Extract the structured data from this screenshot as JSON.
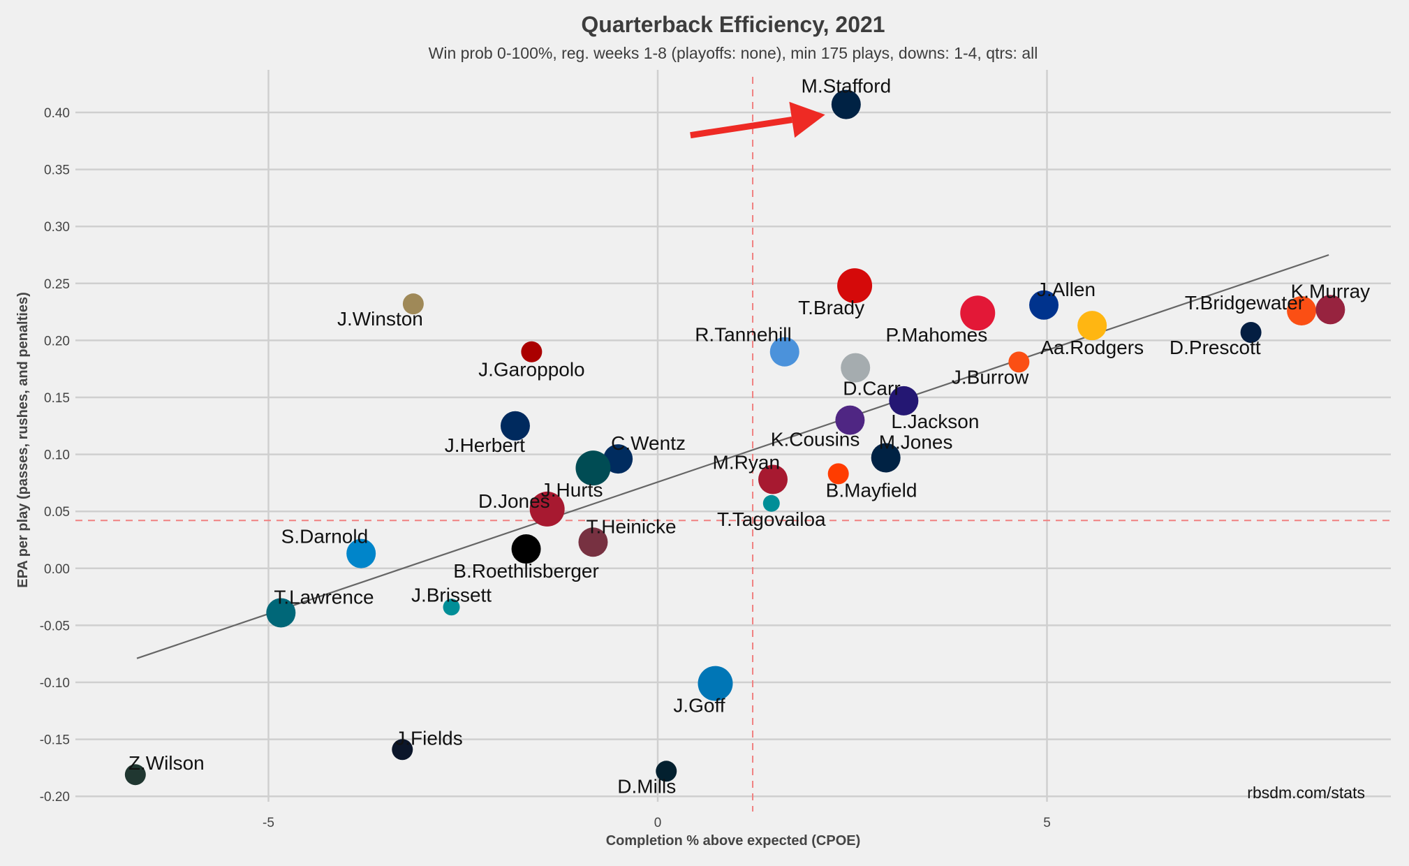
{
  "chart_data": {
    "type": "scatter",
    "title": "Quarterback Efficiency, 2021",
    "subtitle": "Win prob 0-100%, reg. weeks 1-8 (playoffs: none), min 175 plays, downs: 1-4, qtrs: all",
    "xlabel": "Completion % above expected (CPOE)",
    "ylabel": "EPA per play (passes, rushes, and penalties)",
    "caption": "rbsdm.com/stats",
    "xlim": [
      -7.5,
      9.3
    ],
    "ylim": [
      -0.21,
      0.44
    ],
    "xticks": [
      -5,
      0,
      5
    ],
    "xtick_labels": [
      "-5",
      "0",
      "5"
    ],
    "yticks": [
      0.4,
      0.35,
      0.3,
      0.25,
      0.2,
      0.15,
      0.1,
      0.05,
      0.0,
      -0.05,
      -0.1,
      -0.15,
      -0.2
    ],
    "ytick_labels": [
      "0.40",
      "0.35",
      "0.30",
      "0.25",
      "0.20",
      "0.15",
      "0.10",
      "0.05",
      "0.00",
      "-0.05",
      "-0.10",
      "-0.15",
      "-0.20"
    ],
    "grid": true,
    "reference_lines": {
      "vertical_x": 1.22,
      "horizontal_y": 0.042,
      "color": "#f08080"
    },
    "trend_line": {
      "x": [
        -6.69,
        8.62
      ],
      "y": [
        -0.079,
        0.275
      ],
      "color": "#666666"
    },
    "annotation_arrow": {
      "from": [
        0.42,
        0.38
      ],
      "to": [
        2.15,
        0.398
      ],
      "color": "#ee2a24",
      "points_to": "M.Stafford"
    },
    "points": [
      {
        "name": "M.Stafford",
        "x": 2.42,
        "y": 0.407,
        "color": "#002244",
        "size": "medium",
        "label_pos": "above"
      },
      {
        "name": "T.Brady",
        "x": 2.53,
        "y": 0.248,
        "color": "#d50a0a",
        "size": "large",
        "label_pos": "below-left"
      },
      {
        "name": "J.Winston",
        "x": -3.14,
        "y": 0.232,
        "color": "#9f8958",
        "size": "small",
        "label_pos": "below-left"
      },
      {
        "name": "J.Garoppolo",
        "x": -1.62,
        "y": 0.19,
        "color": "#aa0000",
        "size": "small",
        "label_pos": "below"
      },
      {
        "name": "R.Tannehill",
        "x": 1.63,
        "y": 0.19,
        "color": "#4b92db",
        "size": "medium",
        "label_pos": "above-left"
      },
      {
        "name": "P.Mahomes",
        "x": 4.11,
        "y": 0.224,
        "color": "#e31837",
        "size": "large",
        "label_pos": "below-left"
      },
      {
        "name": "J.Allen",
        "x": 4.96,
        "y": 0.231,
        "color": "#00338d",
        "size": "medium",
        "label_pos": "above-right"
      },
      {
        "name": "Aa.Rodgers",
        "x": 5.58,
        "y": 0.213,
        "color": "#ffb612",
        "size": "medium",
        "label_pos": "below"
      },
      {
        "name": "T.Bridgewater",
        "x": 8.27,
        "y": 0.226,
        "color": "#fb4f14",
        "size": "medium",
        "label_pos": "left"
      },
      {
        "name": "K.Murray",
        "x": 8.64,
        "y": 0.227,
        "color": "#97233f",
        "size": "medium",
        "label_pos": "above"
      },
      {
        "name": "D.Prescott",
        "x": 7.62,
        "y": 0.207,
        "color": "#041e42",
        "size": "small",
        "label_pos": "below-left"
      },
      {
        "name": "D.Carr",
        "x": 2.54,
        "y": 0.176,
        "color": "#a5acaf",
        "size": "medium",
        "label_pos": "below-right"
      },
      {
        "name": "J.Burrow",
        "x": 4.64,
        "y": 0.181,
        "color": "#fb4f14",
        "size": "small",
        "label_pos": "below-left"
      },
      {
        "name": "L.Jackson",
        "x": 3.16,
        "y": 0.147,
        "color": "#241773",
        "size": "medium",
        "label_pos": "below-right"
      },
      {
        "name": "K.Cousins",
        "x": 2.47,
        "y": 0.13,
        "color": "#4f2683",
        "size": "medium",
        "label_pos": "below-left"
      },
      {
        "name": "M.Jones",
        "x": 2.93,
        "y": 0.097,
        "color": "#002244",
        "size": "medium",
        "label_pos": "above-right"
      },
      {
        "name": "J.Herbert",
        "x": -1.83,
        "y": 0.125,
        "color": "#002a5e",
        "size": "medium",
        "label_pos": "below-left"
      },
      {
        "name": "C.Wentz",
        "x": -0.51,
        "y": 0.096,
        "color": "#002c5f",
        "size": "medium",
        "label_pos": "above-right"
      },
      {
        "name": "J.Hurts",
        "x": -0.83,
        "y": 0.088,
        "color": "#004c54",
        "size": "large",
        "label_pos": "below-left"
      },
      {
        "name": "D.Jones",
        "x": -1.42,
        "y": 0.052,
        "color": "#a71930",
        "size": "large",
        "label_pos": "left"
      },
      {
        "name": "M.Ryan",
        "x": 1.48,
        "y": 0.078,
        "color": "#a71930",
        "size": "medium",
        "label_pos": "above-left"
      },
      {
        "name": "B.Mayfield",
        "x": 2.32,
        "y": 0.083,
        "color": "#ff3c00",
        "size": "small",
        "label_pos": "below-right"
      },
      {
        "name": "T.Tagovailoa",
        "x": 1.46,
        "y": 0.057,
        "color": "#008e97",
        "size": "tiny",
        "label_pos": "below"
      },
      {
        "name": "T.Heinicke",
        "x": -0.83,
        "y": 0.023,
        "color": "#773141",
        "size": "medium",
        "label_pos": "above-right"
      },
      {
        "name": "B.Roethlisberger",
        "x": -1.69,
        "y": 0.017,
        "color": "#000000",
        "size": "medium",
        "label_pos": "below"
      },
      {
        "name": "S.Darnold",
        "x": -3.81,
        "y": 0.013,
        "color": "#0085ca",
        "size": "medium",
        "label_pos": "above-left"
      },
      {
        "name": "T.Lawrence",
        "x": -4.84,
        "y": -0.039,
        "color": "#006778",
        "size": "medium",
        "label_pos": "above-right"
      },
      {
        "name": "J.Brissett",
        "x": -2.65,
        "y": -0.034,
        "color": "#008e97",
        "size": "tiny",
        "label_pos": "above"
      },
      {
        "name": "J.Goff",
        "x": 0.74,
        "y": -0.101,
        "color": "#0076b6",
        "size": "large",
        "label_pos": "below-left"
      },
      {
        "name": "D.Mills",
        "x": 0.11,
        "y": -0.178,
        "color": "#03202f",
        "size": "small",
        "label_pos": "below-left"
      },
      {
        "name": "J.Fields",
        "x": -3.28,
        "y": -0.159,
        "color": "#0b162a",
        "size": "small",
        "label_pos": "above-right"
      },
      {
        "name": "Z.Wilson",
        "x": -6.71,
        "y": -0.181,
        "color": "#203731",
        "size": "small",
        "label_pos": "above-right"
      }
    ]
  }
}
